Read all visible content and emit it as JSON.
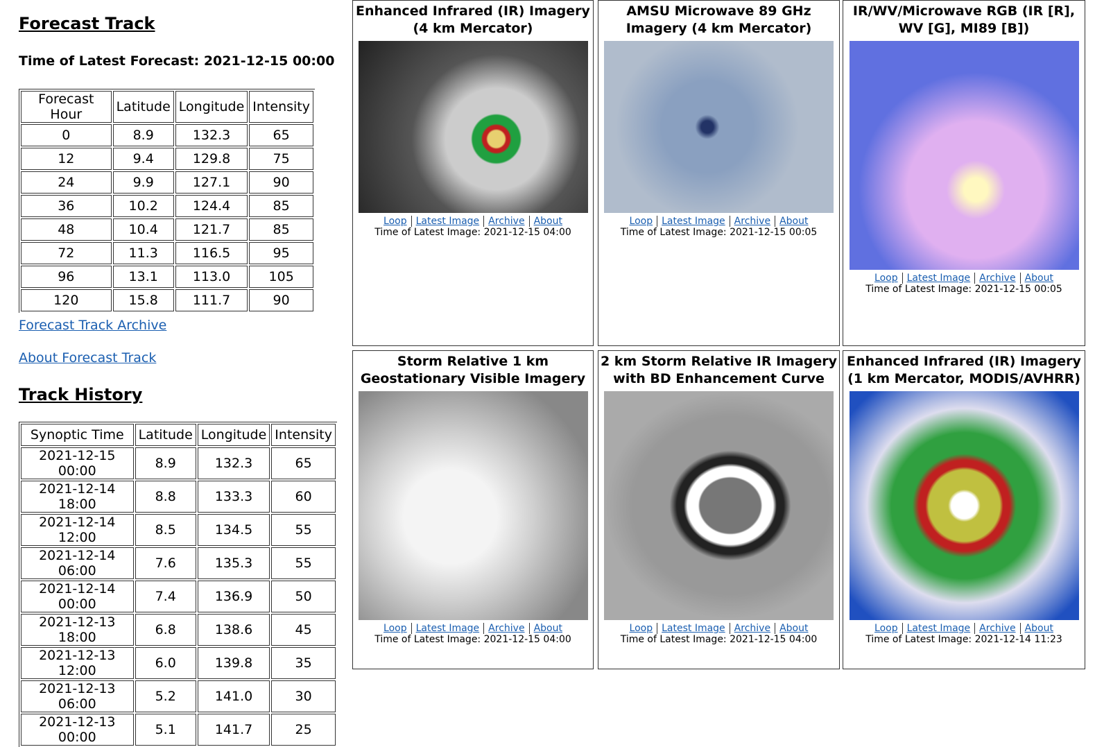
{
  "forecast_track": {
    "title": "Forecast Track",
    "latest": "Time of Latest Forecast: 2021-12-15 00:00",
    "headers": [
      "Forecast Hour",
      "Latitude",
      "Longitude",
      "Intensity"
    ],
    "rows": [
      [
        "0",
        "8.9",
        "132.3",
        "65"
      ],
      [
        "12",
        "9.4",
        "129.8",
        "75"
      ],
      [
        "24",
        "9.9",
        "127.1",
        "90"
      ],
      [
        "36",
        "10.2",
        "124.4",
        "85"
      ],
      [
        "48",
        "10.4",
        "121.7",
        "85"
      ],
      [
        "72",
        "11.3",
        "116.5",
        "95"
      ],
      [
        "96",
        "13.1",
        "113.0",
        "105"
      ],
      [
        "120",
        "15.8",
        "111.7",
        "90"
      ]
    ]
  },
  "links": [
    "Forecast Track Archive",
    "About Forecast Track"
  ],
  "track_history": {
    "title": "Track History",
    "headers": [
      "Synoptic Time",
      "Latitude",
      "Longitude",
      "Intensity"
    ],
    "rows": [
      [
        "2021-12-15 00:00",
        "8.9",
        "132.3",
        "65"
      ],
      [
        "2021-12-14 18:00",
        "8.8",
        "133.3",
        "60"
      ],
      [
        "2021-12-14 12:00",
        "8.5",
        "134.5",
        "55"
      ],
      [
        "2021-12-14 06:00",
        "7.6",
        "135.3",
        "55"
      ],
      [
        "2021-12-14 00:00",
        "7.4",
        "136.9",
        "50"
      ],
      [
        "2021-12-13 18:00",
        "6.8",
        "138.6",
        "45"
      ],
      [
        "2021-12-13 12:00",
        "6.0",
        "139.8",
        "35"
      ],
      [
        "2021-12-13 06:00",
        "5.2",
        "141.0",
        "30"
      ],
      [
        "2021-12-13 00:00",
        "5.1",
        "141.7",
        "25"
      ]
    ]
  },
  "panels": [
    {
      "title": "Enhanced Infrared (IR) Imagery (4 km Mercator)",
      "links": [
        "Loop",
        "Latest Image",
        "Archive",
        "About"
      ],
      "time": "Time of Latest Image: 2021-12-15 04:00"
    },
    {
      "title": "AMSU Microwave 89 GHz Imagery (4 km Mercator)",
      "links": [
        "Loop",
        "Latest Image",
        "Archive",
        "About"
      ],
      "time": "Time of Latest Image: 2021-12-15 00:05"
    },
    {
      "title": "IR/WV/Microwave RGB (IR [R], WV [G], MI89 [B])",
      "links": [
        "Loop",
        "Latest Image",
        "Archive",
        "About"
      ],
      "time": "Time of Latest Image: 2021-12-15 00:05"
    },
    {
      "title": "Storm Relative 1 km Geostationary Visible Imagery",
      "links": [
        "Loop",
        "Latest Image",
        "Archive",
        "About"
      ],
      "time": "Time of Latest Image: 2021-12-15 04:00"
    },
    {
      "title": "2 km Storm Relative IR Imagery with BD Enhancement Curve",
      "links": [
        "Loop",
        "Latest Image",
        "Archive",
        "About"
      ],
      "time": "Time of Latest Image: 2021-12-15 04:00"
    },
    {
      "title": "Enhanced Infrared (IR) Imagery (1 km Mercator, MODIS/AVHRR)",
      "links": [
        "Loop",
        "Latest Image",
        "Archive",
        "About"
      ],
      "time": "Time of Latest Image: 2021-12-14 11:23"
    }
  ]
}
